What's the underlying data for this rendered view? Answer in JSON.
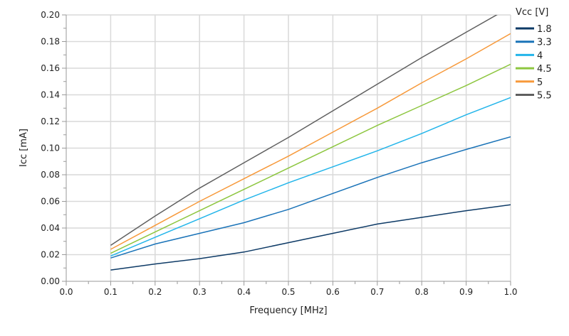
{
  "chart_data": {
    "type": "line",
    "title": "",
    "xlabel": "Frequency [MHz]",
    "ylabel": "Icc [mA]",
    "xlim": [
      0,
      1.0
    ],
    "ylim": [
      0,
      0.2
    ],
    "xticks": [
      "0.0",
      "0.1",
      "0.2",
      "0.3",
      "0.4",
      "0.5",
      "0.6",
      "0.7",
      "0.8",
      "0.9",
      "1.0"
    ],
    "yticks": [
      "0.00",
      "0.02",
      "0.04",
      "0.06",
      "0.08",
      "0.10",
      "0.12",
      "0.14",
      "0.16",
      "0.18",
      "0.20"
    ],
    "grid": true,
    "legend": {
      "title": "Vcc [V]",
      "placement": "right"
    },
    "x": [
      0.1,
      0.2,
      0.3,
      0.4,
      0.5,
      0.6,
      0.7,
      0.8,
      0.9,
      1.0
    ],
    "series": [
      {
        "name": "1.8",
        "color": "#0d3a66",
        "values": [
          0.0085,
          0.013,
          0.017,
          0.022,
          0.029,
          0.036,
          0.043,
          0.048,
          0.053,
          0.0575
        ]
      },
      {
        "name": "3.3",
        "color": "#1a73b8",
        "values": [
          0.0175,
          0.028,
          0.036,
          0.044,
          0.054,
          0.066,
          0.078,
          0.089,
          0.099,
          0.1085
        ]
      },
      {
        "name": "4",
        "color": "#23b5ea",
        "values": [
          0.019,
          0.033,
          0.047,
          0.061,
          0.074,
          0.086,
          0.098,
          0.111,
          0.125,
          0.138
        ]
      },
      {
        "name": "4.5",
        "color": "#8dc63f",
        "values": [
          0.021,
          0.037,
          0.053,
          0.069,
          0.085,
          0.101,
          0.117,
          0.132,
          0.147,
          0.163
        ]
      },
      {
        "name": "5",
        "color": "#f7993a",
        "values": [
          0.024,
          0.042,
          0.06,
          0.077,
          0.094,
          0.112,
          0.13,
          0.149,
          0.167,
          0.186
        ]
      },
      {
        "name": "5.5",
        "color": "#5f5f5f",
        "values": [
          0.027,
          0.049,
          0.07,
          0.089,
          0.108,
          0.128,
          0.148,
          0.168,
          0.187,
          0.206
        ]
      }
    ]
  }
}
